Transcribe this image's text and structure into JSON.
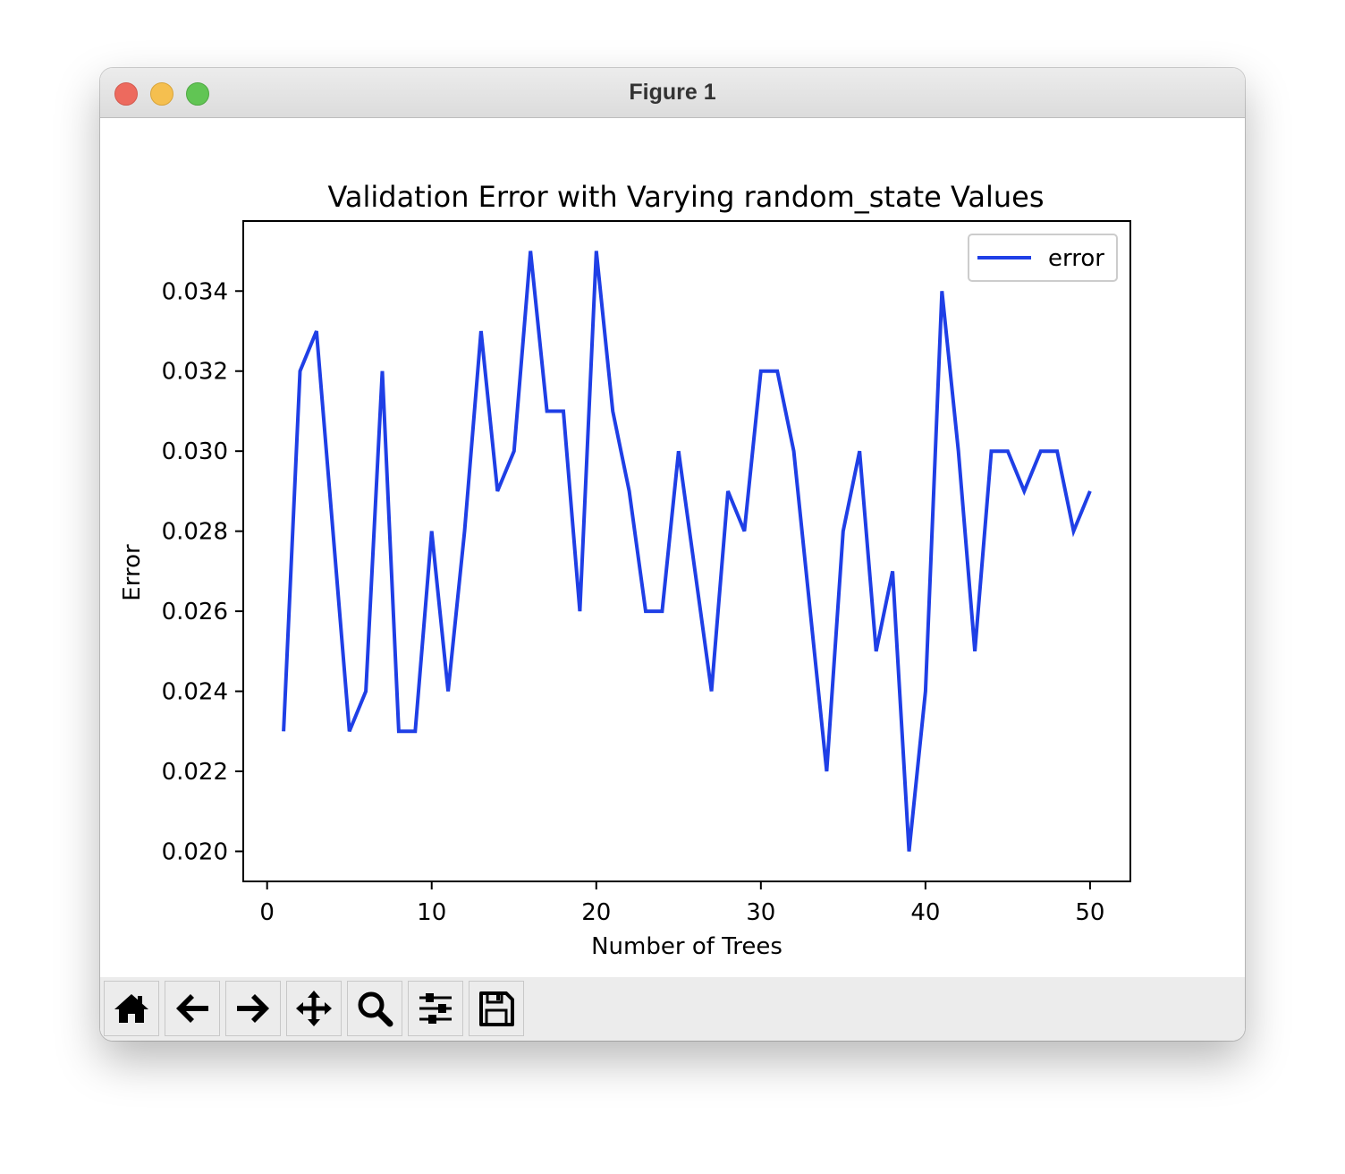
{
  "window": {
    "title": "Figure 1"
  },
  "toolbar": {
    "buttons": [
      {
        "name": "home-button",
        "icon": "home-icon"
      },
      {
        "name": "back-button",
        "icon": "arrow-left-icon"
      },
      {
        "name": "forward-button",
        "icon": "arrow-right-icon"
      },
      {
        "name": "pan-button",
        "icon": "move-icon"
      },
      {
        "name": "zoom-button",
        "icon": "search-icon"
      },
      {
        "name": "configure-subplots-button",
        "icon": "sliders-icon"
      },
      {
        "name": "save-button",
        "icon": "save-icon"
      }
    ]
  },
  "chart_data": {
    "type": "line",
    "title": "Validation Error with Varying random_state Values",
    "xlabel": "Number of Trees",
    "ylabel": "Error",
    "xlim": [
      -1.45,
      52.45
    ],
    "ylim": [
      0.01925,
      0.03575
    ],
    "xticks": [
      0,
      10,
      20,
      30,
      40,
      50
    ],
    "xtick_labels": [
      "0",
      "10",
      "20",
      "30",
      "40",
      "50"
    ],
    "yticks": [
      0.02,
      0.022,
      0.024,
      0.026,
      0.028,
      0.03,
      0.032,
      0.034
    ],
    "ytick_labels": [
      "0.020",
      "0.022",
      "0.024",
      "0.026",
      "0.028",
      "0.030",
      "0.032",
      "0.034"
    ],
    "grid": false,
    "legend": {
      "placement": "top-right"
    },
    "series": [
      {
        "name": "error",
        "color": "#1f3fe6",
        "x": [
          1,
          2,
          3,
          4,
          5,
          6,
          7,
          8,
          9,
          10,
          11,
          12,
          13,
          14,
          15,
          16,
          17,
          18,
          19,
          20,
          21,
          22,
          23,
          24,
          25,
          26,
          27,
          28,
          29,
          30,
          31,
          32,
          33,
          34,
          35,
          36,
          37,
          38,
          39,
          40,
          41,
          42,
          43,
          44,
          45,
          46,
          47,
          48,
          49,
          50
        ],
        "y": [
          0.023,
          0.032,
          0.033,
          0.028,
          0.023,
          0.024,
          0.032,
          0.023,
          0.023,
          0.028,
          0.024,
          0.028,
          0.033,
          0.029,
          0.03,
          0.035,
          0.031,
          0.031,
          0.026,
          0.035,
          0.031,
          0.029,
          0.026,
          0.026,
          0.03,
          0.027,
          0.024,
          0.029,
          0.028,
          0.032,
          0.032,
          0.03,
          0.026,
          0.022,
          0.028,
          0.03,
          0.025,
          0.027,
          0.02,
          0.024,
          0.034,
          0.03,
          0.025,
          0.03,
          0.03,
          0.029,
          0.03,
          0.03,
          0.028,
          0.029
        ]
      }
    ]
  }
}
